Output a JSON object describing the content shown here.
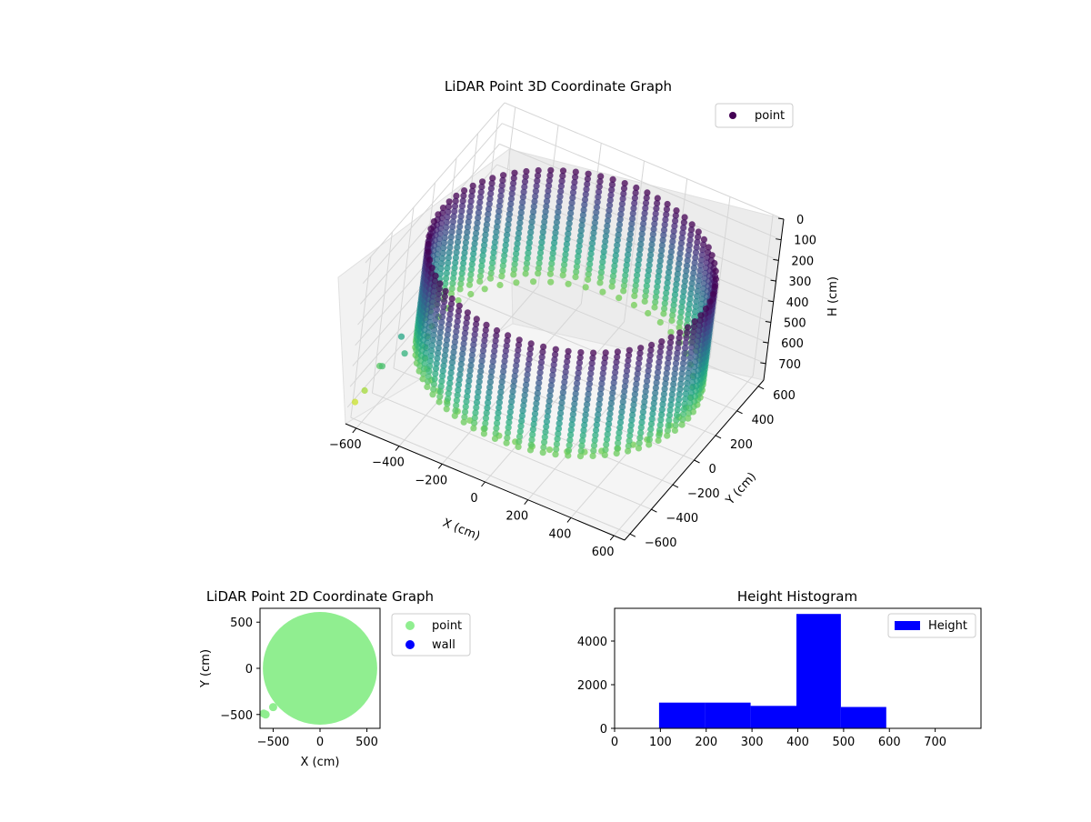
{
  "colors": {
    "point_2d": "#90ee90",
    "wall_2d": "#0000ff",
    "histogram": "#0000ff",
    "legend_3d_marker": "#440154"
  },
  "chart_data": [
    {
      "type": "scatter",
      "projection": "3d",
      "title": "LiDAR Point 3D Coordinate Graph",
      "xlabel": "X (cm)",
      "ylabel": "Y (cm)",
      "zlabel": "H (cm)",
      "xlim": [
        -650,
        650
      ],
      "ylim": [
        -650,
        650
      ],
      "zlim": [
        0,
        780
      ],
      "z_inverted": true,
      "x_ticks": [
        -600,
        -400,
        -200,
        0,
        200,
        400,
        600
      ],
      "y_ticks": [
        -600,
        -400,
        -200,
        0,
        200,
        400,
        600
      ],
      "z_ticks": [
        0,
        100,
        200,
        300,
        400,
        500,
        600,
        700
      ],
      "colormap": "viridis",
      "legend": [
        "point"
      ],
      "legend_position": "upper right",
      "grid": true,
      "series": [
        {
          "name": "point",
          "shape": "cylindrical wall of points, radius approx. 600 cm, heights approx. 100 to 600 cm, plus a few outliers near x = -600"
        }
      ]
    },
    {
      "type": "scatter",
      "title": "LiDAR Point 2D Coordinate Graph",
      "xlabel": "X (cm)",
      "ylabel": "Y (cm)",
      "xlim": [
        -640,
        640
      ],
      "ylim": [
        -650,
        650
      ],
      "x_ticks": [
        -500,
        0,
        500
      ],
      "y_ticks": [
        -500,
        0,
        500
      ],
      "legend": [
        "point",
        "wall"
      ],
      "legend_position": "outside right",
      "series": [
        {
          "name": "point",
          "shape": "filled disc, center (0, 0), radius approx. 610 cm",
          "outliers": [
            {
              "x": -600,
              "y": -490
            },
            {
              "x": -580,
              "y": -500
            },
            {
              "x": -500,
              "y": -420
            }
          ]
        },
        {
          "name": "wall",
          "values": []
        }
      ]
    },
    {
      "type": "bar",
      "subtype": "histogram",
      "title": "Height Histogram",
      "xlim": [
        0,
        800
      ],
      "ylim": [
        0,
        5500
      ],
      "x_ticks": [
        0,
        100,
        200,
        300,
        400,
        500,
        600,
        700
      ],
      "y_ticks": [
        0,
        2000,
        4000
      ],
      "legend": [
        "Height"
      ],
      "legend_position": "upper right",
      "series": [
        {
          "name": "Height",
          "bins": [
            {
              "start": 97,
              "end": 197,
              "count": 1180
            },
            {
              "start": 197,
              "end": 297,
              "count": 1180
            },
            {
              "start": 297,
              "end": 397,
              "count": 1030
            },
            {
              "start": 397,
              "end": 494,
              "count": 5240
            },
            {
              "start": 494,
              "end": 593,
              "count": 980
            }
          ]
        }
      ]
    }
  ]
}
